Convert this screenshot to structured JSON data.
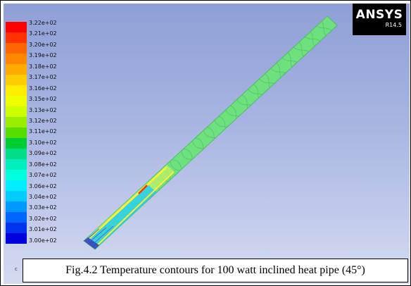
{
  "logo": {
    "brand": "ANSYS",
    "version": "R14.5"
  },
  "legend": {
    "labels": [
      "3.22e+02",
      "3.21e+02",
      "3.20e+02",
      "3.19e+02",
      "3.18e+02",
      "3.17e+02",
      "3.16e+02",
      "3.15e+02",
      "3.13e+02",
      "3.12e+02",
      "3.11e+02",
      "3.10e+02",
      "3.09e+02",
      "3.08e+02",
      "3.07e+02",
      "3.06e+02",
      "3.04e+02",
      "3.03e+02",
      "3.02e+02",
      "3.01e+02",
      "3.00e+02"
    ],
    "colors": [
      "#ff0000",
      "#ff3300",
      "#ff6600",
      "#ff8800",
      "#ffaa00",
      "#ffcc00",
      "#ffee00",
      "#eeff00",
      "#ccff00",
      "#99ee00",
      "#55dd00",
      "#00cc33",
      "#00dd88",
      "#00eebb",
      "#00ffdd",
      "#00eeff",
      "#00ccff",
      "#0099ff",
      "#0066ff",
      "#0033ee",
      "#0000dd"
    ]
  },
  "caption": {
    "text": "Fig.4.2 Temperature contours for 100 watt inclined heat pipe (45°)"
  },
  "stray_char": "c",
  "colors": {
    "pipe_body": "#6ee07e",
    "pipe_hatch": "#35a84a",
    "pipe_hot": "#ffee33",
    "pipe_cold": "#22ccee",
    "pipe_red": "#ff3300",
    "pipe_blue": "#3344bb"
  }
}
